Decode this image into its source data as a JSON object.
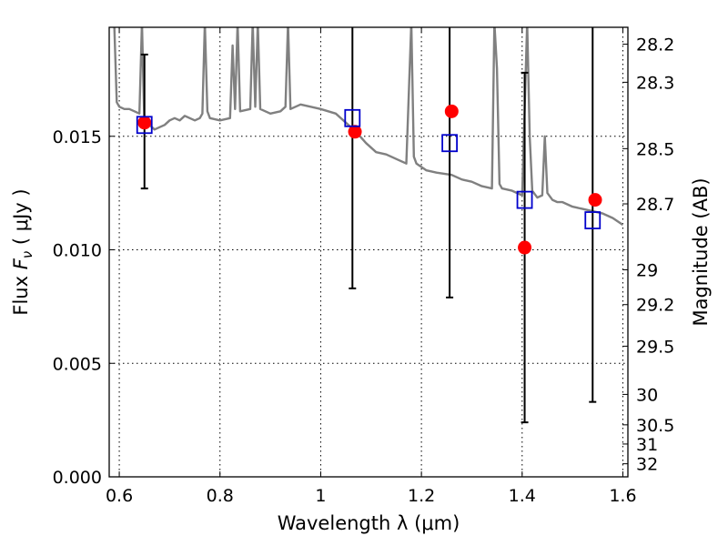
{
  "chart_data": {
    "type": "scatter",
    "xlabel": "Wavelength  λ (μm)",
    "ylabel": "Flux  F_ν  ( μJy )",
    "ylabel_parts": {
      "prefix": "Flux  ",
      "symbol": "F",
      "subscript": "ν",
      "suffix": "  ( μJy )"
    },
    "y2label": "Magnitude (AB)",
    "xlim": [
      0.58,
      1.61
    ],
    "ylim": [
      0.0,
      0.0198
    ],
    "grid": true,
    "x_ticks": [
      {
        "value": 0.6,
        "label": "0.6"
      },
      {
        "value": 0.8,
        "label": "0.8"
      },
      {
        "value": 1.0,
        "label": "1"
      },
      {
        "value": 1.2,
        "label": "1.2"
      },
      {
        "value": 1.4,
        "label": "1.4"
      },
      {
        "value": 1.6,
        "label": "1.6"
      }
    ],
    "y_ticks": [
      {
        "value": 0.0,
        "label": "0.000"
      },
      {
        "value": 0.005,
        "label": "0.005"
      },
      {
        "value": 0.01,
        "label": "0.010"
      },
      {
        "value": 0.015,
        "label": "0.015"
      }
    ],
    "y2_ticks": [
      {
        "value": 28.2,
        "label": "28.2"
      },
      {
        "value": 28.3,
        "label": "28.3"
      },
      {
        "value": 28.5,
        "label": "28.5"
      },
      {
        "value": 28.7,
        "label": "28.7"
      },
      {
        "value": 29.0,
        "label": "29"
      },
      {
        "value": 29.2,
        "label": "29.2"
      },
      {
        "value": 29.5,
        "label": "29.5"
      },
      {
        "value": 30.0,
        "label": "30"
      },
      {
        "value": 30.5,
        "label": "30.5"
      },
      {
        "value": 31.0,
        "label": "31"
      },
      {
        "value": 32.0,
        "label": "32"
      }
    ],
    "series": [
      {
        "kind": "line",
        "color": "#808080",
        "x": [
          0.59,
          0.595,
          0.6,
          0.61,
          0.62,
          0.63,
          0.64,
          0.645,
          0.65,
          0.66,
          0.67,
          0.68,
          0.69,
          0.7,
          0.71,
          0.72,
          0.73,
          0.74,
          0.75,
          0.76,
          0.765,
          0.77,
          0.775,
          0.78,
          0.8,
          0.82,
          0.825,
          0.83,
          0.835,
          0.84,
          0.86,
          0.865,
          0.87,
          0.875,
          0.88,
          0.9,
          0.92,
          0.93,
          0.935,
          0.94,
          0.96,
          0.98,
          1.0,
          1.03,
          1.05,
          1.07,
          1.09,
          1.11,
          1.13,
          1.15,
          1.17,
          1.18,
          1.185,
          1.19,
          1.21,
          1.23,
          1.26,
          1.28,
          1.3,
          1.32,
          1.34,
          1.345,
          1.35,
          1.355,
          1.36,
          1.38,
          1.4,
          1.41,
          1.415,
          1.42,
          1.43,
          1.44,
          1.445,
          1.45,
          1.46,
          1.47,
          1.48,
          1.49,
          1.5,
          1.52,
          1.54,
          1.56,
          1.58,
          1.6
        ],
        "y": [
          0.02,
          0.0165,
          0.0163,
          0.0162,
          0.0162,
          0.0161,
          0.016,
          0.02,
          0.0154,
          0.0155,
          0.0153,
          0.0154,
          0.0155,
          0.0157,
          0.0158,
          0.0157,
          0.0159,
          0.0158,
          0.0157,
          0.0158,
          0.016,
          0.02,
          0.0161,
          0.0158,
          0.0157,
          0.0158,
          0.019,
          0.0162,
          0.02,
          0.0161,
          0.0162,
          0.02,
          0.0163,
          0.02,
          0.0162,
          0.016,
          0.0161,
          0.0163,
          0.02,
          0.0162,
          0.0164,
          0.0163,
          0.0162,
          0.016,
          0.0156,
          0.0152,
          0.0147,
          0.0143,
          0.0142,
          0.014,
          0.0138,
          0.02,
          0.0141,
          0.0138,
          0.0135,
          0.0134,
          0.0133,
          0.0131,
          0.013,
          0.0128,
          0.0127,
          0.02,
          0.018,
          0.0129,
          0.0127,
          0.0126,
          0.0124,
          0.02,
          0.015,
          0.0126,
          0.0123,
          0.0124,
          0.015,
          0.0125,
          0.0122,
          0.0121,
          0.0121,
          0.012,
          0.0119,
          0.0118,
          0.0117,
          0.0116,
          0.0114,
          0.0111
        ]
      },
      {
        "kind": "points",
        "marker": "circle",
        "color": "#ff0000",
        "x": [
          0.65,
          1.068,
          1.26,
          1.405,
          1.545
        ],
        "y": [
          0.0156,
          0.0152,
          0.0161,
          0.0101,
          0.0122
        ]
      },
      {
        "kind": "points",
        "marker": "open-square",
        "color": "#0000cc",
        "x": [
          0.65,
          1.063,
          1.256,
          1.405,
          1.54
        ],
        "y": [
          0.0155,
          0.0158,
          0.0147,
          0.0122,
          0.0113
        ],
        "err_low": [
          0.0127,
          0.0083,
          0.0079,
          0.0024,
          0.0033
        ],
        "err_high": [
          0.0186,
          0.02,
          0.02,
          0.0178,
          0.02
        ]
      }
    ],
    "colors": {
      "model": "#808080",
      "observed": "#ff0000",
      "predicted": "#0000cc",
      "errorbar": "#000000"
    }
  }
}
